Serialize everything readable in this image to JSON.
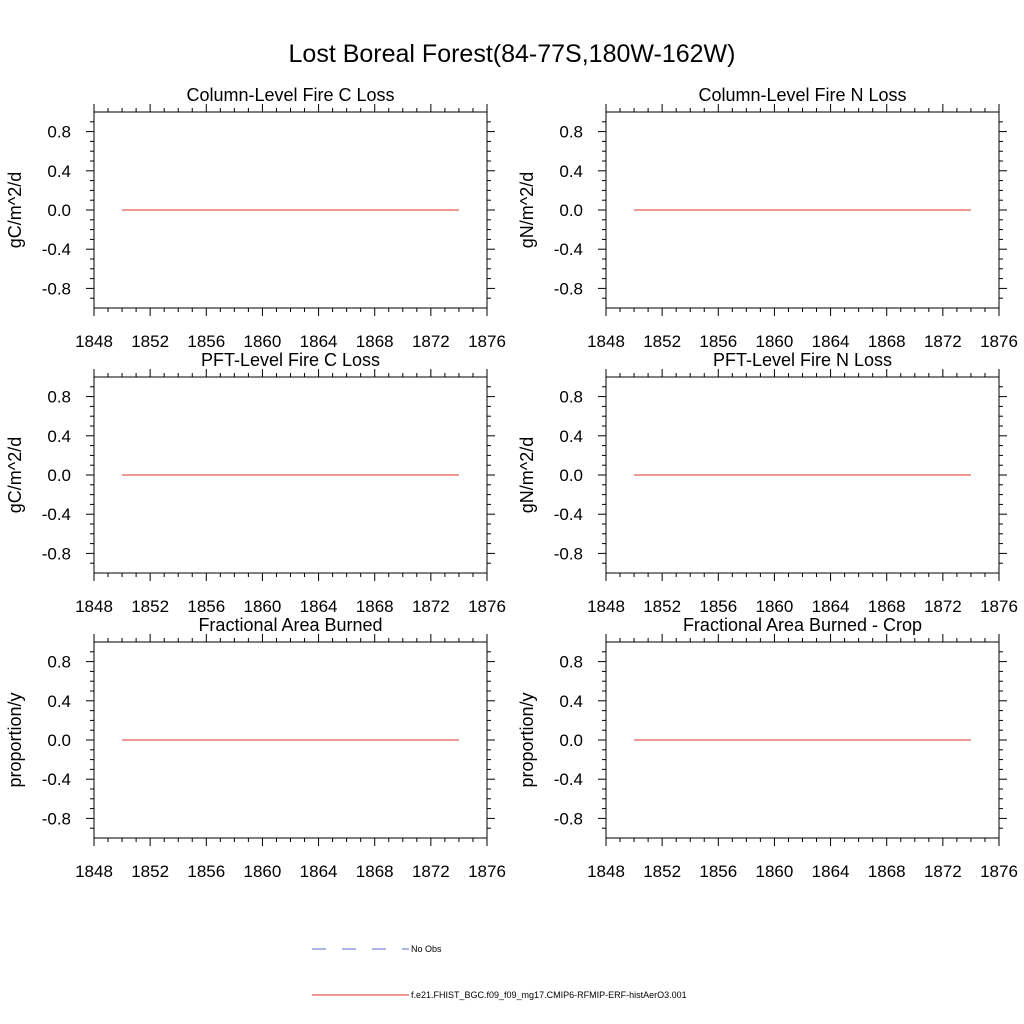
{
  "figure": {
    "title": "Lost Boreal Forest(84-77S,180W-162W)"
  },
  "legend": {
    "entries": [
      {
        "label": "No Obs",
        "color": "#5b6ad8",
        "style": "dashed"
      },
      {
        "label": "f.e21.FHIST_BGC.f09_f09_mg17.CMIP6-RFMIP-ERF-histAerO3.001",
        "color": "#e0302a",
        "style": "solid"
      }
    ]
  },
  "chart_data": [
    {
      "type": "line",
      "title": "Column-Level Fire C Loss",
      "xlabel": "",
      "ylabel": "gC/m^2/d",
      "xlim": [
        1848,
        1876
      ],
      "ylim": [
        -1,
        1
      ],
      "xticks": [
        "1848",
        "1852",
        "1856",
        "1860",
        "1864",
        "1868",
        "1872",
        "1876"
      ],
      "yticks": [
        "0.8",
        "0.4",
        "0.0",
        "-0.4",
        "-0.8"
      ],
      "series": [
        {
          "name": "f.e21.FHIST_BGC.f09_f09_mg17.CMIP6-RFMIP-ERF-histAerO3.001",
          "color": "#e0302a",
          "x": [
            1850,
            1874
          ],
          "y": [
            0,
            0
          ]
        }
      ]
    },
    {
      "type": "line",
      "title": "Column-Level Fire N Loss",
      "xlabel": "",
      "ylabel": "gN/m^2/d",
      "xlim": [
        1848,
        1876
      ],
      "ylim": [
        -1,
        1
      ],
      "xticks": [
        "1848",
        "1852",
        "1856",
        "1860",
        "1864",
        "1868",
        "1872",
        "1876"
      ],
      "yticks": [
        "0.8",
        "0.4",
        "0.0",
        "-0.4",
        "-0.8"
      ],
      "series": [
        {
          "name": "f.e21.FHIST_BGC.f09_f09_mg17.CMIP6-RFMIP-ERF-histAerO3.001",
          "color": "#e0302a",
          "x": [
            1850,
            1874
          ],
          "y": [
            0,
            0
          ]
        }
      ]
    },
    {
      "type": "line",
      "title": "PFT-Level Fire C Loss",
      "xlabel": "",
      "ylabel": "gC/m^2/d",
      "xlim": [
        1848,
        1876
      ],
      "ylim": [
        -1,
        1
      ],
      "xticks": [
        "1848",
        "1852",
        "1856",
        "1860",
        "1864",
        "1868",
        "1872",
        "1876"
      ],
      "yticks": [
        "0.8",
        "0.4",
        "0.0",
        "-0.4",
        "-0.8"
      ],
      "series": [
        {
          "name": "f.e21.FHIST_BGC.f09_f09_mg17.CMIP6-RFMIP-ERF-histAerO3.001",
          "color": "#e0302a",
          "x": [
            1850,
            1874
          ],
          "y": [
            0,
            0
          ]
        }
      ]
    },
    {
      "type": "line",
      "title": "PFT-Level Fire N Loss",
      "xlabel": "",
      "ylabel": "gN/m^2/d",
      "xlim": [
        1848,
        1876
      ],
      "ylim": [
        -1,
        1
      ],
      "xticks": [
        "1848",
        "1852",
        "1856",
        "1860",
        "1864",
        "1868",
        "1872",
        "1876"
      ],
      "yticks": [
        "0.8",
        "0.4",
        "0.0",
        "-0.4",
        "-0.8"
      ],
      "series": [
        {
          "name": "f.e21.FHIST_BGC.f09_f09_mg17.CMIP6-RFMIP-ERF-histAerO3.001",
          "color": "#e0302a",
          "x": [
            1850,
            1874
          ],
          "y": [
            0,
            0
          ]
        }
      ]
    },
    {
      "type": "line",
      "title": "Fractional Area Burned",
      "xlabel": "",
      "ylabel": "proportion/y",
      "xlim": [
        1848,
        1876
      ],
      "ylim": [
        -1,
        1
      ],
      "xticks": [
        "1848",
        "1852",
        "1856",
        "1860",
        "1864",
        "1868",
        "1872",
        "1876"
      ],
      "yticks": [
        "0.8",
        "0.4",
        "0.0",
        "-0.4",
        "-0.8"
      ],
      "series": [
        {
          "name": "f.e21.FHIST_BGC.f09_f09_mg17.CMIP6-RFMIP-ERF-histAerO3.001",
          "color": "#e0302a",
          "x": [
            1850,
            1874
          ],
          "y": [
            0,
            0
          ]
        }
      ]
    },
    {
      "type": "line",
      "title": "Fractional Area Burned - Crop",
      "xlabel": "",
      "ylabel": "proportion/y",
      "xlim": [
        1848,
        1876
      ],
      "ylim": [
        -1,
        1
      ],
      "xticks": [
        "1848",
        "1852",
        "1856",
        "1860",
        "1864",
        "1868",
        "1872",
        "1876"
      ],
      "yticks": [
        "0.8",
        "0.4",
        "0.0",
        "-0.4",
        "-0.8"
      ],
      "series": [
        {
          "name": "f.e21.FHIST_BGC.f09_f09_mg17.CMIP6-RFMIP-ERF-histAerO3.001",
          "color": "#e0302a",
          "x": [
            1850,
            1874
          ],
          "y": [
            0,
            0
          ]
        }
      ]
    }
  ]
}
